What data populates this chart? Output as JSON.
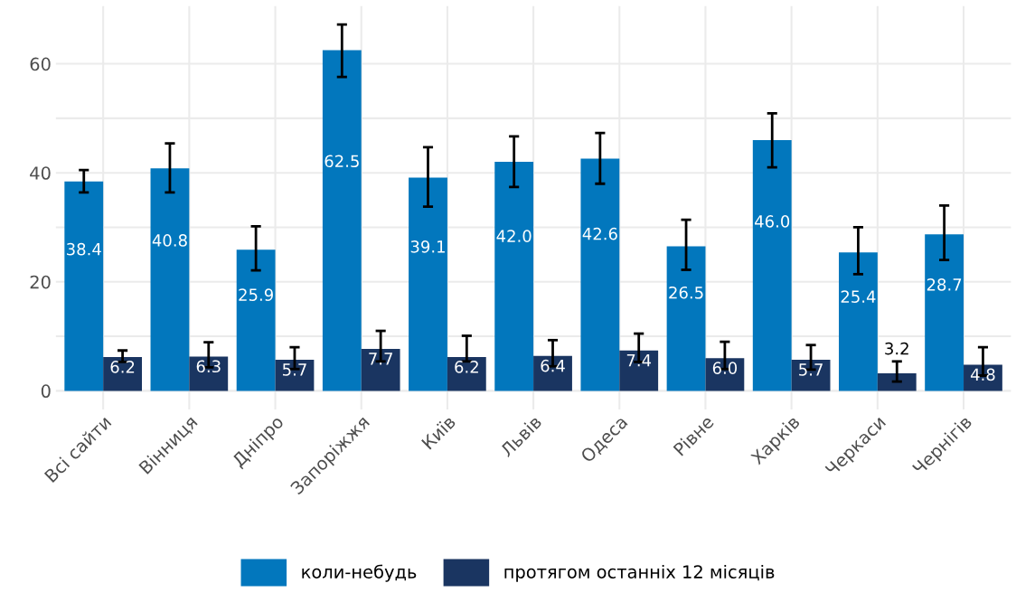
{
  "chart_data": {
    "type": "bar",
    "categories": [
      "Всі сайти",
      "Вінниця",
      "Дніпро",
      "Запоріжжя",
      "Київ",
      "Львів",
      "Одеса",
      "Рівне",
      "Харків",
      "Черкаси",
      "Чернігів"
    ],
    "series": [
      {
        "name": "коли-небудь",
        "color": "#0277bd",
        "values": [
          38.4,
          40.8,
          25.9,
          62.5,
          39.1,
          42.0,
          42.6,
          26.5,
          46.0,
          25.4,
          28.7
        ],
        "value_labels": [
          "38.4",
          "40.8",
          "25.9",
          "62.5",
          "39.1",
          "42.0",
          "42.6",
          "26.5",
          "46.0",
          "25.4",
          "28.7"
        ],
        "errors": [
          [
            36.4,
            40.5
          ],
          [
            36.4,
            45.4
          ],
          [
            22.1,
            30.2
          ],
          [
            57.6,
            67.2
          ],
          [
            33.8,
            44.7
          ],
          [
            37.4,
            46.7
          ],
          [
            38.0,
            47.3
          ],
          [
            22.2,
            31.4
          ],
          [
            41.0,
            50.9
          ],
          [
            21.4,
            30.0
          ],
          [
            24.0,
            34.0
          ]
        ]
      },
      {
        "name": "протягом останніх 12 місяців",
        "color": "#1a3561",
        "values": [
          6.2,
          6.3,
          5.7,
          7.7,
          6.2,
          6.4,
          7.4,
          6.0,
          5.7,
          3.2,
          4.8
        ],
        "value_labels": [
          "6.2",
          "6.3",
          "5.7",
          "7.7",
          "6.2",
          "6.4",
          "7.4",
          "6.0",
          "5.7",
          "3.2",
          "4.8"
        ],
        "errors": [
          [
            5.3,
            7.4
          ],
          [
            4.3,
            8.9
          ],
          [
            4.0,
            8.0
          ],
          [
            5.4,
            11.0
          ],
          [
            5.4,
            10.1
          ],
          [
            4.5,
            9.3
          ],
          [
            5.3,
            10.5
          ],
          [
            4.0,
            9.0
          ],
          [
            3.9,
            8.4
          ],
          [
            1.7,
            5.4
          ],
          [
            2.8,
            8.0
          ]
        ]
      }
    ],
    "ylim": [
      -3.4,
      70.6
    ],
    "yticks": [
      0,
      {
        "value": 10,
        "label": null
      },
      20,
      {
        "value": 30,
        "label": null
      },
      40,
      {
        "value": 50,
        "label": null
      },
      60
    ],
    "grid": true,
    "legend": "bottom"
  }
}
